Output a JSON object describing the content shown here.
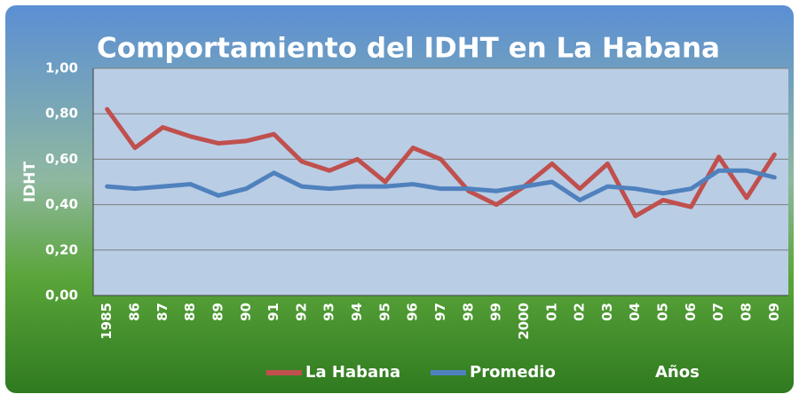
{
  "chart_data": {
    "type": "line",
    "title": "Comportamiento del IDHT en La Habana",
    "y_label": "IDHT",
    "x_label": "Años",
    "categories": [
      "1985",
      "86",
      "87",
      "88",
      "89",
      "90",
      "91",
      "92",
      "93",
      "94",
      "95",
      "96",
      "97",
      "98",
      "99",
      "2000",
      "01",
      "02",
      "03",
      "04",
      "05",
      "06",
      "07",
      "08",
      "09"
    ],
    "series": [
      {
        "name": "La Habana",
        "color": "#c0504d",
        "values": [
          0.82,
          0.65,
          0.74,
          0.7,
          0.67,
          0.68,
          0.71,
          0.59,
          0.55,
          0.6,
          0.5,
          0.65,
          0.6,
          0.46,
          0.4,
          0.48,
          0.58,
          0.47,
          0.58,
          0.35,
          0.42,
          0.39,
          0.61,
          0.43,
          0.62
        ]
      },
      {
        "name": "Promedio",
        "color": "#4f81bd",
        "values": [
          0.48,
          0.47,
          0.48,
          0.49,
          0.44,
          0.47,
          0.54,
          0.48,
          0.47,
          0.48,
          0.48,
          0.49,
          0.47,
          0.47,
          0.46,
          0.48,
          0.5,
          0.42,
          0.48,
          0.47,
          0.45,
          0.47,
          0.55,
          0.55,
          0.52
        ]
      }
    ],
    "ylim": [
      0,
      1
    ],
    "yticks": [
      {
        "value": 0,
        "label": "0,00"
      },
      {
        "value": 0.2,
        "label": "0,20"
      },
      {
        "value": 0.4,
        "label": "0,40"
      },
      {
        "value": 0.6,
        "label": "0,60"
      },
      {
        "value": 0.8,
        "label": "0,80"
      },
      {
        "value": 1,
        "label": "1,00"
      }
    ],
    "grid": true
  }
}
